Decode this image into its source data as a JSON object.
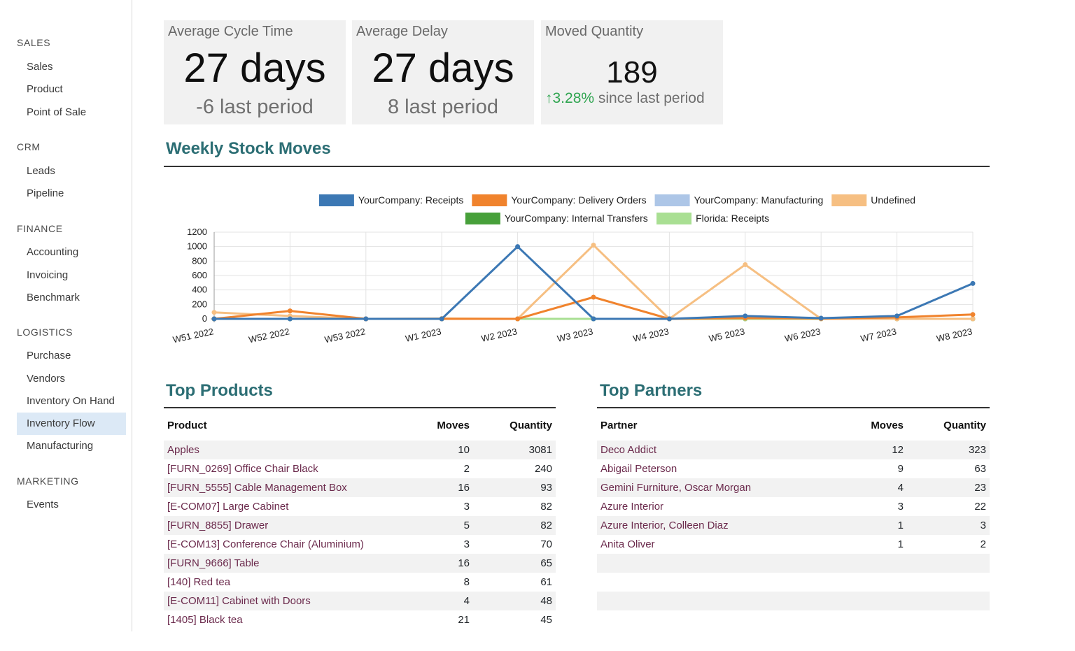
{
  "sidebar": {
    "sections": [
      {
        "title": "SALES",
        "items": [
          "Sales",
          "Product",
          "Point of Sale"
        ]
      },
      {
        "title": "CRM",
        "items": [
          "Leads",
          "Pipeline"
        ]
      },
      {
        "title": "FINANCE",
        "items": [
          "Accounting",
          "Invoicing",
          "Benchmark"
        ]
      },
      {
        "title": "LOGISTICS",
        "items": [
          "Purchase",
          "Vendors",
          "Inventory On Hand",
          "Inventory Flow",
          "Manufacturing"
        ]
      },
      {
        "title": "MARKETING",
        "items": [
          "Events"
        ]
      }
    ],
    "active_item": "Inventory Flow"
  },
  "kpis": {
    "cycle": {
      "label": "Average Cycle Time",
      "value": "27 days",
      "comparison": "-6 last period"
    },
    "delay": {
      "label": "Average Delay",
      "value": "27 days",
      "comparison": "8 last period"
    },
    "moved": {
      "label": "Moved Quantity",
      "value": "189",
      "trend_arrow": "↑",
      "trend_value": "3.28%",
      "trend_text": " since last period"
    }
  },
  "colors": {
    "accent_heading": "#2c6e74",
    "link": "#6b2a4c",
    "active_bg": "#dce9f6",
    "trend_up": "#2ea44f"
  },
  "weekly": {
    "title": "Weekly Stock Moves"
  },
  "chart_data": {
    "type": "line",
    "x": [
      "W51 2022",
      "W52 2022",
      "W53 2022",
      "W1 2023",
      "W2 2023",
      "W3 2023",
      "W4 2023",
      "W5 2023",
      "W6 2023",
      "W7 2023",
      "W8 2023"
    ],
    "ylim": [
      0,
      1200
    ],
    "yticks": [
      0,
      200,
      400,
      600,
      800,
      1000,
      1200
    ],
    "grid": true,
    "legend_position": "top",
    "series": [
      {
        "name": "YourCompany: Receipts",
        "color": "#3c78b4",
        "values": [
          0,
          0,
          0,
          0,
          1000,
          0,
          0,
          40,
          10,
          40,
          490
        ]
      },
      {
        "name": "YourCompany: Delivery Orders",
        "color": "#f0832d",
        "values": [
          0,
          110,
          0,
          0,
          0,
          300,
          0,
          10,
          5,
          20,
          60
        ]
      },
      {
        "name": "YourCompany: Manufacturing",
        "color": "#adc6e7",
        "values": [
          0,
          0,
          0,
          0,
          0,
          0,
          0,
          0,
          0,
          0,
          0
        ]
      },
      {
        "name": "Undefined",
        "color": "#f6bf82",
        "values": [
          90,
          40,
          0,
          5,
          0,
          1020,
          0,
          750,
          0,
          0,
          0
        ]
      },
      {
        "name": "YourCompany: Internal Transfers",
        "color": "#47a03a",
        "values": [
          0,
          0,
          0,
          0,
          0,
          0,
          0,
          0,
          0,
          0,
          0
        ]
      },
      {
        "name": "Florida: Receipts",
        "color": "#a9df93",
        "values": [
          0,
          0,
          0,
          0,
          0,
          0,
          0,
          0,
          0,
          0,
          0
        ]
      }
    ]
  },
  "top_products": {
    "title": "Top Products",
    "columns": [
      "Product",
      "Moves",
      "Quantity"
    ],
    "rows": [
      {
        "name": "Apples",
        "moves": "10",
        "quantity": "3081"
      },
      {
        "name": "[FURN_0269] Office Chair Black",
        "moves": "2",
        "quantity": "240"
      },
      {
        "name": "[FURN_5555] Cable Management Box",
        "moves": "16",
        "quantity": "93"
      },
      {
        "name": "[E-COM07] Large Cabinet",
        "moves": "3",
        "quantity": "82"
      },
      {
        "name": "[FURN_8855] Drawer",
        "moves": "5",
        "quantity": "82"
      },
      {
        "name": "[E-COM13] Conference Chair (Aluminium)",
        "moves": "3",
        "quantity": "70"
      },
      {
        "name": "[FURN_9666] Table",
        "moves": "16",
        "quantity": "65"
      },
      {
        "name": "[140] Red tea",
        "moves": "8",
        "quantity": "61"
      },
      {
        "name": "[E-COM11] Cabinet with Doors",
        "moves": "4",
        "quantity": "48"
      },
      {
        "name": "[1405] Black tea",
        "moves": "21",
        "quantity": "45"
      }
    ]
  },
  "top_partners": {
    "title": "Top Partners",
    "columns": [
      "Partner",
      "Moves",
      "Quantity"
    ],
    "rows": [
      {
        "name": "Deco Addict",
        "moves": "12",
        "quantity": "323"
      },
      {
        "name": "Abigail Peterson",
        "moves": "9",
        "quantity": "63"
      },
      {
        "name": "Gemini Furniture, Oscar Morgan",
        "moves": "4",
        "quantity": "23"
      },
      {
        "name": "Azure Interior",
        "moves": "3",
        "quantity": "22"
      },
      {
        "name": "Azure Interior, Colleen Diaz",
        "moves": "1",
        "quantity": "3"
      },
      {
        "name": "Anita Oliver",
        "moves": "1",
        "quantity": "2"
      },
      {
        "name": "",
        "moves": "",
        "quantity": ""
      },
      {
        "name": "",
        "moves": "",
        "quantity": ""
      },
      {
        "name": "",
        "moves": "",
        "quantity": ""
      },
      {
        "name": "",
        "moves": "",
        "quantity": ""
      }
    ]
  }
}
